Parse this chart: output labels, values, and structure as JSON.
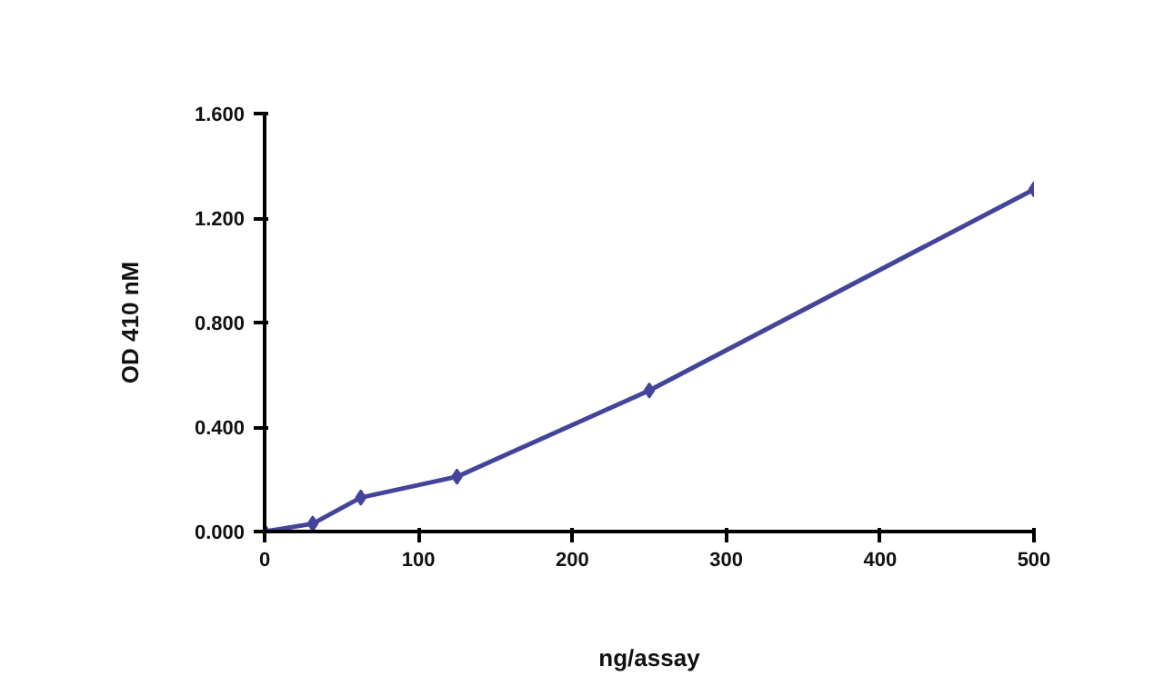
{
  "chart_data": {
    "type": "line",
    "xlabel": "ng/assay",
    "ylabel": "OD 410 nM",
    "x": [
      0,
      31.25,
      62.5,
      125,
      250,
      500
    ],
    "series": [
      {
        "color": "#44449a",
        "values": [
          0,
          0.03,
          0.13,
          0.21,
          0.54,
          1.31
        ]
      }
    ],
    "xlim": [
      0,
      500
    ],
    "xticks": [
      0,
      100,
      200,
      300,
      400,
      500
    ],
    "ylim": [
      0,
      1.6
    ],
    "yticks": [
      {
        "value": 0,
        "label": "0.000"
      },
      {
        "value": 0.4,
        "label": "0.400"
      },
      {
        "value": 0.8,
        "label": "0.800"
      },
      {
        "value": 1.2,
        "label": "1.200"
      },
      {
        "value": 1.6,
        "label": "1.600"
      }
    ],
    "grid": false,
    "marker": "diamond",
    "line_style": "solid"
  }
}
